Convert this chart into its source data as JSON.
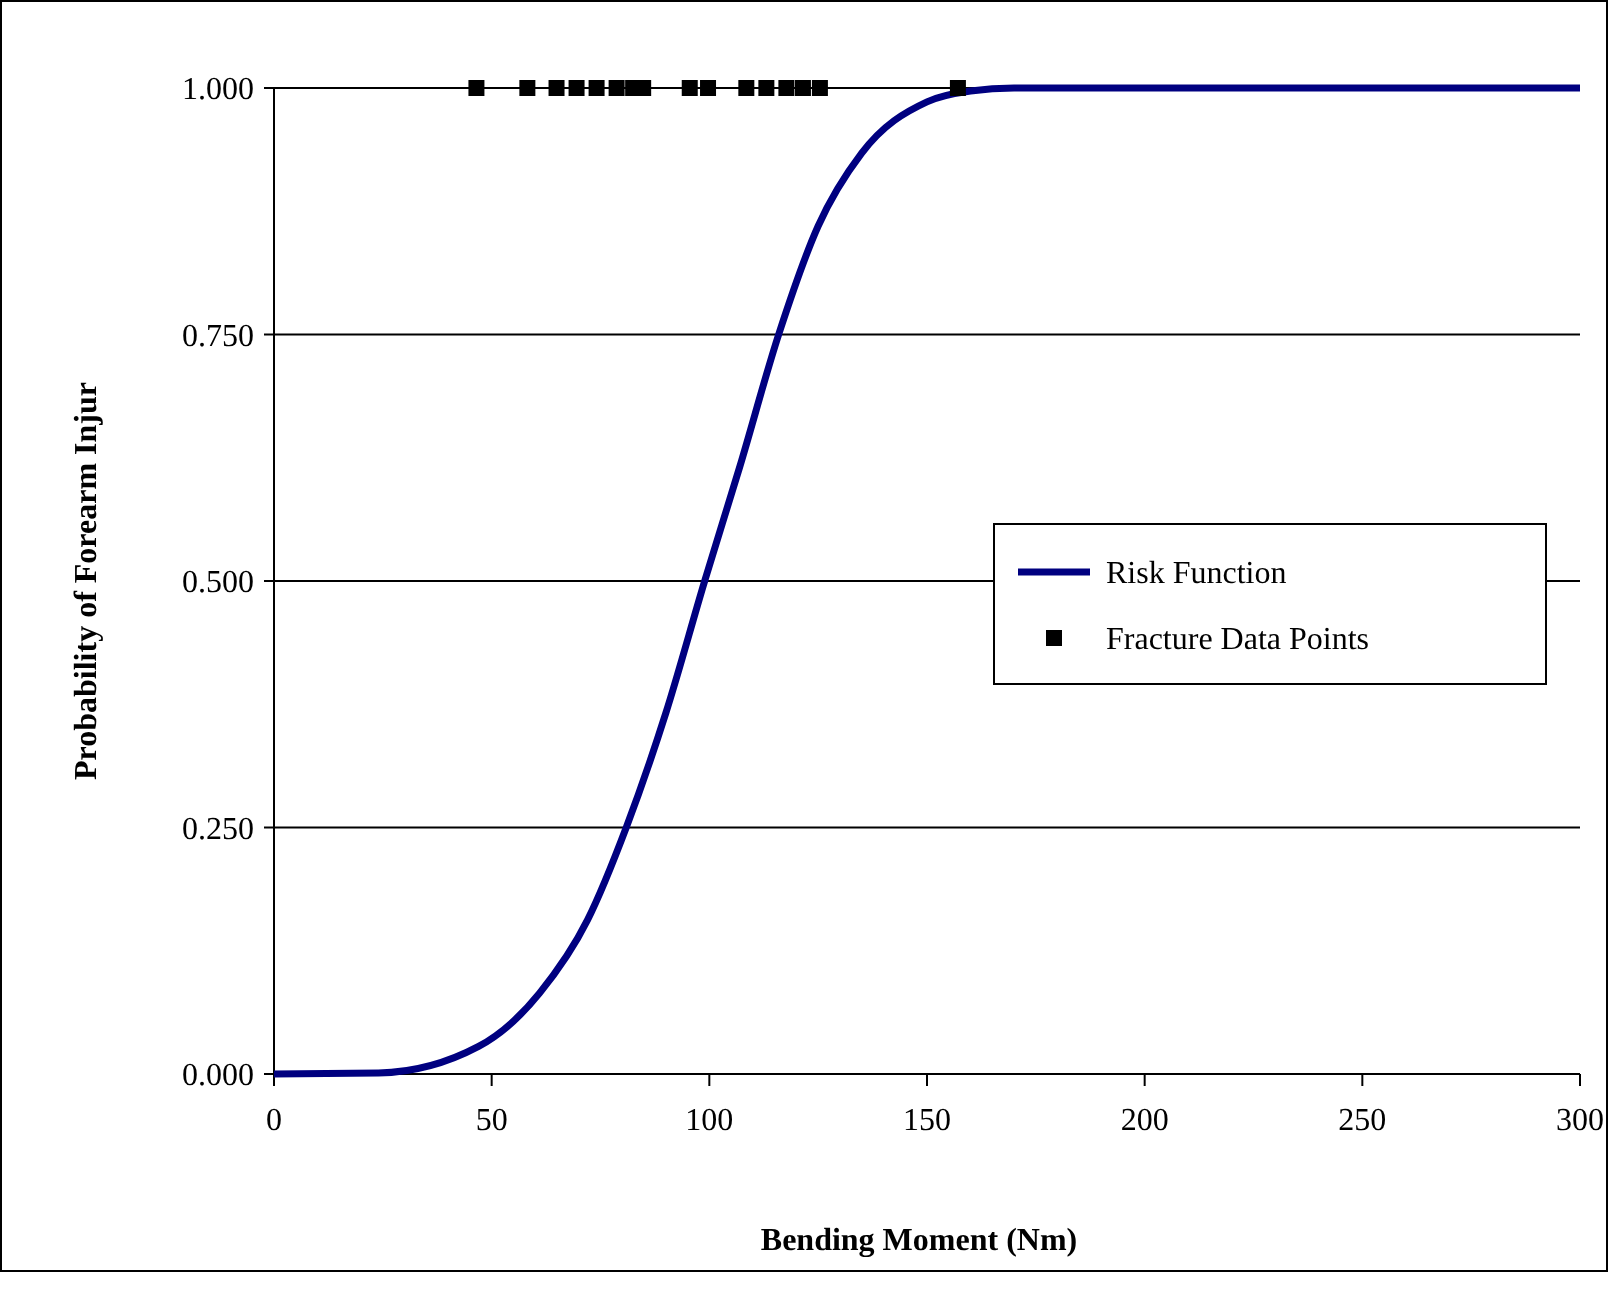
{
  "chart_data": {
    "type": "line",
    "xlabel": "Bending Moment (Nm)",
    "ylabel": "Probability of Forearm Injur",
    "xlim": [
      0,
      300
    ],
    "xticks": [
      0,
      50,
      100,
      150,
      200,
      250,
      300
    ],
    "ylim": [
      0,
      1
    ],
    "yticks": [
      {
        "value": 0,
        "label": "0.000"
      },
      {
        "value": 0.25,
        "label": "0.250"
      },
      {
        "value": 0.5,
        "label": "0.500"
      },
      {
        "value": 0.75,
        "label": "0.750"
      },
      {
        "value": 1,
        "label": "1.000"
      }
    ],
    "grid": "y",
    "legend": "right",
    "series": [
      {
        "name": "Risk Function",
        "color": "#000080",
        "marker": "none",
        "line_style": "solid",
        "x": [
          0,
          24,
          47,
          61,
          72,
          81,
          90,
          99,
          107,
          116,
          125,
          135,
          150,
          160,
          170,
          200,
          250,
          300
        ],
        "values": [
          0,
          0.001,
          0.028,
          0.082,
          0.156,
          0.251,
          0.366,
          0.501,
          0.616,
          0.751,
          0.86,
          0.934,
          0.986,
          0.997,
          1,
          1,
          1,
          1
        ]
      },
      {
        "name": "Fracture Data Points",
        "type": "scatter",
        "color": "#000000",
        "marker": "square",
        "x": [
          46.5,
          58.2,
          64.9,
          69.5,
          74.1,
          78.7,
          82.5,
          84.8,
          95.5,
          99.7,
          108.5,
          113.1,
          117.7,
          121.5,
          125.4,
          157.1
        ],
        "values": [
          1,
          1,
          1,
          1,
          1,
          1,
          1,
          1,
          1,
          1,
          1,
          1,
          1,
          1,
          1,
          1
        ]
      }
    ]
  }
}
